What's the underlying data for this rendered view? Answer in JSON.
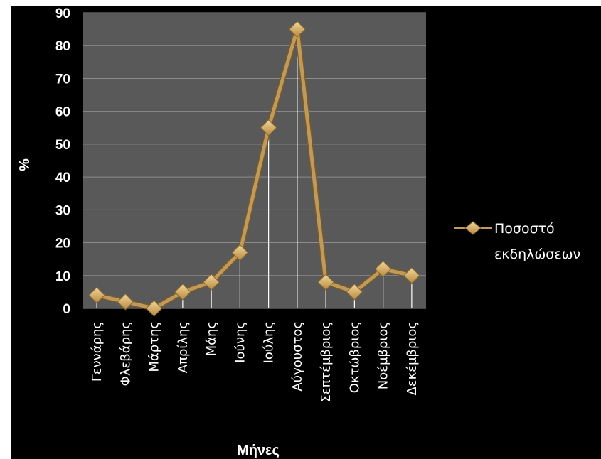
{
  "chart_data": {
    "type": "line",
    "title": "",
    "xlabel": "Μήνες",
    "ylabel": "%",
    "ylim": [
      0,
      90
    ],
    "yticks": [
      0,
      10,
      20,
      30,
      40,
      50,
      60,
      70,
      80,
      90
    ],
    "categories": [
      "Γεννάρης",
      "Φλεβάρης",
      "Μάρτης",
      "Απρίλης",
      "Μάης",
      "Ιούνης",
      "Ιούλης",
      "Αύγουστος",
      "Σεπτέμβριος",
      "Οκτώβριος",
      "Νοέμβριος",
      "Δεκέμβριος"
    ],
    "series": [
      {
        "name": "Ποσοστό εκδηλώσεων",
        "values": [
          4,
          2,
          0,
          5,
          8,
          17,
          55,
          85,
          8,
          5,
          12,
          10
        ]
      }
    ],
    "grid": true,
    "legend": "right",
    "colors": {
      "background": "#000000",
      "plot_area": "#595959",
      "gridline": "#8c8c8c",
      "line": "#c09a5a",
      "marker": "#e8c27a",
      "text": "#ffffff"
    }
  },
  "legend": {
    "line1": "Ποσοστό",
    "line2": "εκδηλώσεων"
  }
}
